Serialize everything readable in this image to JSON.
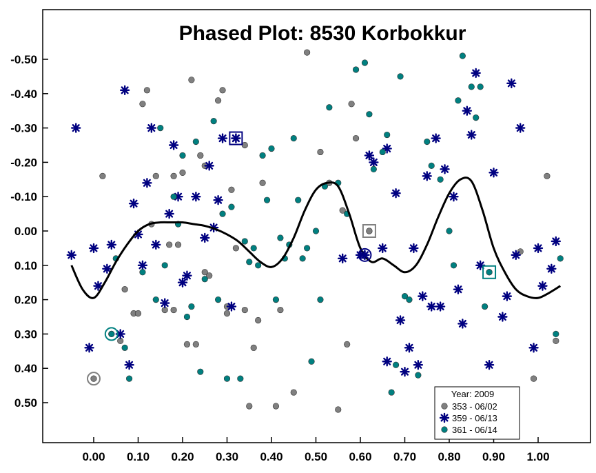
{
  "chart_data": {
    "type": "scatter",
    "title": "Phased Plot: 8530  Korbokkur",
    "xlabel": "",
    "ylabel": "",
    "xlim": [
      -0.1,
      1.12
    ],
    "ylim": [
      -0.6,
      0.6
    ],
    "y_inverted": true,
    "x_ticks": [
      "0.00",
      "0.10",
      "0.20",
      "0.30",
      "0.40",
      "0.50",
      "0.60",
      "0.70",
      "0.80",
      "0.90",
      "1.00"
    ],
    "x_tick_values": [
      0,
      0.1,
      0.2,
      0.3,
      0.4,
      0.5,
      0.6,
      0.7,
      0.8,
      0.9,
      1.0
    ],
    "y_ticks": [
      "-0.50",
      "-0.40",
      "-0.30",
      "-0.20",
      "-0.10",
      "0.00",
      "0.10",
      "0.20",
      "0.30",
      "0.40",
      "0.50"
    ],
    "y_tick_values": [
      -0.5,
      -0.4,
      -0.3,
      -0.2,
      -0.1,
      0,
      0.1,
      0.2,
      0.3,
      0.4,
      0.5
    ],
    "grid": false,
    "legend": {
      "placement": "bottom-right",
      "title": "Year: 2009",
      "entries": [
        "353 - 06/02",
        "359 - 06/13",
        "361 - 06/14"
      ]
    },
    "colors": {
      "s353": "#808080",
      "s359": "#000080",
      "s361": "#008080",
      "curve": "#000000"
    },
    "series": [
      {
        "name": "353 - 06/02",
        "marker": "circle",
        "points": [
          [
            0.02,
            -0.16
          ],
          [
            0.06,
            0.32
          ],
          [
            0.07,
            0.17
          ],
          [
            0.09,
            0.24
          ],
          [
            0.1,
            0.24
          ],
          [
            0.11,
            -0.37
          ],
          [
            0.12,
            -0.41
          ],
          [
            0.13,
            -0.02
          ],
          [
            0.14,
            -0.16
          ],
          [
            0.16,
            0.23
          ],
          [
            0.17,
            0.04
          ],
          [
            0.18,
            0.23
          ],
          [
            0.18,
            -0.16
          ],
          [
            0.19,
            0.04
          ],
          [
            0.2,
            -0.17
          ],
          [
            0.21,
            0.33
          ],
          [
            0.22,
            -0.44
          ],
          [
            0.23,
            0.33
          ],
          [
            0.24,
            -0.22
          ],
          [
            0.25,
            0.12
          ],
          [
            0.25,
            -0.19
          ],
          [
            0.26,
            0.13
          ],
          [
            0.28,
            -0.38
          ],
          [
            0.29,
            -0.41
          ],
          [
            0.3,
            0.22
          ],
          [
            0.3,
            0.24
          ],
          [
            0.31,
            -0.12
          ],
          [
            0.32,
            0.05
          ],
          [
            0.34,
            0.23
          ],
          [
            0.34,
            -0.25
          ],
          [
            0.35,
            0.51
          ],
          [
            0.36,
            0.34
          ],
          [
            0.37,
            0.26
          ],
          [
            0.38,
            -0.14
          ],
          [
            0.41,
            0.51
          ],
          [
            0.42,
            0.23
          ],
          [
            0.45,
            0.47
          ],
          [
            0.48,
            -0.52
          ],
          [
            0.51,
            -0.23
          ],
          [
            0.53,
            -0.14
          ],
          [
            0.55,
            0.52
          ],
          [
            0.56,
            -0.06
          ],
          [
            0.57,
            0.33
          ],
          [
            0.58,
            -0.37
          ],
          [
            0.59,
            -0.27
          ],
          [
            0.62,
            0.0
          ],
          [
            0.96,
            0.06
          ],
          [
            0.99,
            0.43
          ],
          [
            1.02,
            -0.16
          ],
          [
            1.04,
            0.32
          ]
        ]
      },
      {
        "name": "359 - 06/13",
        "marker": "asterisk",
        "points": [
          [
            -0.05,
            0.07
          ],
          [
            -0.04,
            -0.3
          ],
          [
            -0.01,
            0.34
          ],
          [
            0.0,
            0.05
          ],
          [
            0.01,
            0.16
          ],
          [
            0.03,
            0.11
          ],
          [
            0.04,
            0.04
          ],
          [
            0.06,
            0.3
          ],
          [
            0.07,
            -0.41
          ],
          [
            0.08,
            0.39
          ],
          [
            0.09,
            -0.08
          ],
          [
            0.1,
            0.01
          ],
          [
            0.11,
            0.1
          ],
          [
            0.12,
            -0.14
          ],
          [
            0.13,
            -0.3
          ],
          [
            0.14,
            0.04
          ],
          [
            0.16,
            0.21
          ],
          [
            0.17,
            -0.05
          ],
          [
            0.18,
            -0.25
          ],
          [
            0.19,
            -0.1
          ],
          [
            0.2,
            0.15
          ],
          [
            0.21,
            0.13
          ],
          [
            0.23,
            -0.1
          ],
          [
            0.25,
            0.02
          ],
          [
            0.26,
            -0.19
          ],
          [
            0.27,
            -0.01
          ],
          [
            0.28,
            -0.09
          ],
          [
            0.29,
            -0.27
          ],
          [
            0.31,
            0.22
          ],
          [
            0.32,
            -0.27
          ],
          [
            0.56,
            0.08
          ],
          [
            0.6,
            0.07
          ],
          [
            0.61,
            0.07
          ],
          [
            0.62,
            -0.22
          ],
          [
            0.63,
            -0.2
          ],
          [
            0.65,
            0.05
          ],
          [
            0.66,
            -0.24
          ],
          [
            0.66,
            0.38
          ],
          [
            0.68,
            -0.11
          ],
          [
            0.69,
            0.26
          ],
          [
            0.7,
            0.41
          ],
          [
            0.71,
            0.34
          ],
          [
            0.72,
            0.05
          ],
          [
            0.73,
            0.39
          ],
          [
            0.74,
            0.19
          ],
          [
            0.75,
            -0.16
          ],
          [
            0.76,
            0.22
          ],
          [
            0.77,
            -0.27
          ],
          [
            0.78,
            0.22
          ],
          [
            0.79,
            -0.18
          ],
          [
            0.81,
            -0.1
          ],
          [
            0.82,
            0.17
          ],
          [
            0.83,
            0.27
          ],
          [
            0.84,
            -0.35
          ],
          [
            0.85,
            -0.28
          ],
          [
            0.86,
            -0.46
          ],
          [
            0.87,
            0.1
          ],
          [
            0.89,
            0.39
          ],
          [
            0.9,
            -0.17
          ],
          [
            0.92,
            0.25
          ],
          [
            0.93,
            0.19
          ],
          [
            0.94,
            -0.43
          ],
          [
            0.95,
            0.07
          ],
          [
            0.96,
            -0.3
          ],
          [
            0.99,
            0.34
          ],
          [
            1.0,
            0.05
          ],
          [
            1.01,
            0.16
          ],
          [
            1.03,
            0.11
          ],
          [
            1.04,
            0.03
          ]
        ]
      },
      {
        "name": "361 - 06/14",
        "marker": "circle",
        "points": [
          [
            0.04,
            0.3
          ],
          [
            0.05,
            0.08
          ],
          [
            0.07,
            0.34
          ],
          [
            0.08,
            0.43
          ],
          [
            0.11,
            0.12
          ],
          [
            0.14,
            0.2
          ],
          [
            0.15,
            -0.3
          ],
          [
            0.16,
            0.1
          ],
          [
            0.18,
            -0.1
          ],
          [
            0.19,
            -0.02
          ],
          [
            0.2,
            -0.22
          ],
          [
            0.21,
            0.25
          ],
          [
            0.22,
            0.22
          ],
          [
            0.23,
            -0.26
          ],
          [
            0.24,
            0.41
          ],
          [
            0.25,
            0.14
          ],
          [
            0.27,
            -0.32
          ],
          [
            0.28,
            0.2
          ],
          [
            0.29,
            -0.05
          ],
          [
            0.3,
            0.43
          ],
          [
            0.31,
            -0.07
          ],
          [
            0.33,
            0.43
          ],
          [
            0.34,
            0.03
          ],
          [
            0.35,
            0.09
          ],
          [
            0.36,
            0.05
          ],
          [
            0.37,
            0.1
          ],
          [
            0.38,
            -0.22
          ],
          [
            0.39,
            -0.09
          ],
          [
            0.4,
            -0.24
          ],
          [
            0.41,
            0.2
          ],
          [
            0.42,
            0.02
          ],
          [
            0.43,
            0.08
          ],
          [
            0.44,
            0.04
          ],
          [
            0.45,
            -0.27
          ],
          [
            0.46,
            -0.09
          ],
          [
            0.47,
            0.08
          ],
          [
            0.48,
            0.05
          ],
          [
            0.49,
            0.38
          ],
          [
            0.5,
            0.0
          ],
          [
            0.51,
            0.2
          ],
          [
            0.52,
            -0.13
          ],
          [
            0.53,
            -0.36
          ],
          [
            0.55,
            -0.14
          ],
          [
            0.57,
            -0.05
          ],
          [
            0.59,
            -0.47
          ],
          [
            0.61,
            -0.49
          ],
          [
            0.62,
            -0.34
          ],
          [
            0.63,
            -0.18
          ],
          [
            0.65,
            -0.23
          ],
          [
            0.66,
            -0.28
          ],
          [
            0.67,
            0.47
          ],
          [
            0.68,
            0.39
          ],
          [
            0.69,
            -0.45
          ],
          [
            0.7,
            0.19
          ],
          [
            0.71,
            0.2
          ],
          [
            0.73,
            0.42
          ],
          [
            0.75,
            -0.26
          ],
          [
            0.76,
            -0.19
          ],
          [
            0.78,
            -0.15
          ],
          [
            0.8,
            0.0
          ],
          [
            0.81,
            0.1
          ],
          [
            0.82,
            -0.38
          ],
          [
            0.83,
            -0.51
          ],
          [
            0.85,
            -0.42
          ],
          [
            0.86,
            -0.33
          ],
          [
            0.87,
            -0.42
          ],
          [
            0.88,
            0.22
          ],
          [
            0.89,
            0.12
          ],
          [
            1.04,
            0.3
          ],
          [
            1.05,
            0.08
          ]
        ]
      }
    ],
    "highlighted_points": [
      {
        "series": "353 - 06/02",
        "x": 0.0,
        "y": 0.43,
        "shape": "circle"
      },
      {
        "series": "353 - 06/02",
        "x": 0.62,
        "y": 0.0,
        "shape": "square"
      },
      {
        "series": "359 - 06/13",
        "x": 0.32,
        "y": -0.27,
        "shape": "square"
      },
      {
        "series": "359 - 06/13",
        "x": 0.61,
        "y": 0.07,
        "shape": "circle"
      },
      {
        "series": "361 - 06/14",
        "x": 0.04,
        "y": 0.3,
        "shape": "circle"
      },
      {
        "series": "361 - 06/14",
        "x": 0.89,
        "y": 0.12,
        "shape": "square"
      }
    ],
    "fit_curve": {
      "x": [
        -0.05,
        -0.025,
        0.0,
        0.025,
        0.05,
        0.075,
        0.1,
        0.125,
        0.15,
        0.175,
        0.2,
        0.225,
        0.25,
        0.275,
        0.3,
        0.325,
        0.35,
        0.375,
        0.4,
        0.425,
        0.45,
        0.475,
        0.5,
        0.525,
        0.55,
        0.575,
        0.6,
        0.625,
        0.65,
        0.675,
        0.7,
        0.725,
        0.75,
        0.775,
        0.8,
        0.825,
        0.85,
        0.875,
        0.9,
        0.925,
        0.95,
        0.975,
        1.0,
        1.025,
        1.05
      ],
      "y": [
        0.1,
        0.17,
        0.195,
        0.15,
        0.09,
        0.04,
        0.0,
        -0.02,
        -0.025,
        -0.025,
        -0.025,
        -0.02,
        -0.015,
        -0.005,
        0.01,
        0.03,
        0.06,
        0.09,
        0.105,
        0.08,
        0.02,
        -0.06,
        -0.12,
        -0.14,
        -0.13,
        -0.05,
        0.05,
        0.09,
        0.08,
        0.1,
        0.12,
        0.1,
        0.04,
        -0.04,
        -0.11,
        -0.15,
        -0.145,
        -0.06,
        0.05,
        0.12,
        0.17,
        0.19,
        0.195,
        0.18,
        0.16
      ]
    }
  }
}
